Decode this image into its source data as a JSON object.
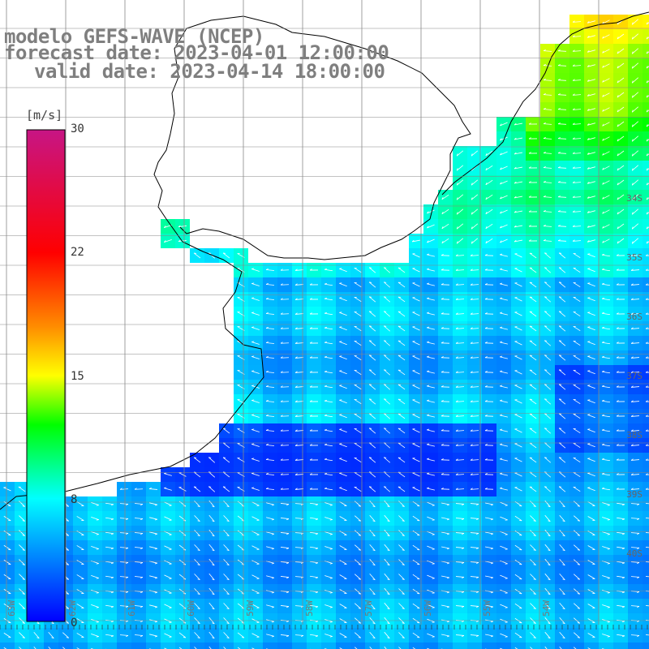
{
  "map": {
    "title_line1": "modelo GEFS-WAVE (NCEP)",
    "title_line2": "forecast date: 2023-04-01 12:00:00",
    "title_line3": "valid date: 2023-04-14 18:00:00",
    "colorbar": {
      "unit": "[m/s]",
      "ticks": [
        "30",
        "22",
        "15",
        "8",
        "0"
      ],
      "colors": [
        "#c71585",
        "#ff0000",
        "#ff7f00",
        "#ffff00",
        "#00ff00",
        "#00ffff",
        "#0000ff"
      ]
    },
    "lat_labels": [
      "34S",
      "35S",
      "36S",
      "37S",
      "38S",
      "39S",
      "40S"
    ],
    "lon_labels": [
      "63W",
      "62W",
      "61W",
      "60W",
      "59W",
      "58W",
      "57W",
      "56W",
      "55W",
      "54W"
    ],
    "land_color": "#ffffff",
    "grid_color": "#888888",
    "arrow_color": "#ffffff",
    "variable": "wind speed"
  }
}
